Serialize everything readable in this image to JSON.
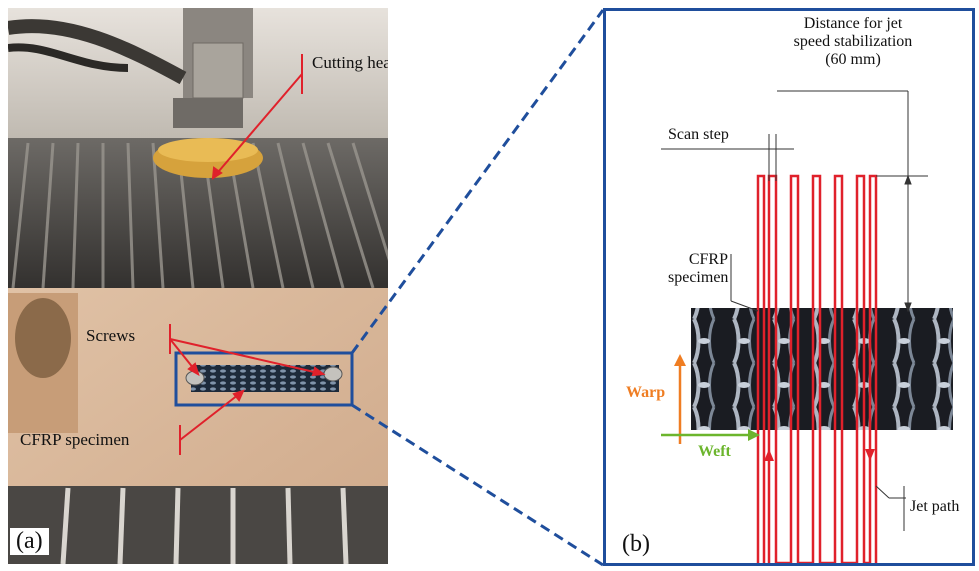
{
  "panel_a": {
    "tag": "(a)",
    "labels": {
      "cutting_head": "Cutting head",
      "screws": "Screws",
      "cfrp_specimen": "CFRP specimen"
    }
  },
  "panel_b": {
    "tag": "(b)",
    "labels": {
      "distance_line1": "Distance for jet",
      "distance_line2": "speed stabilization",
      "distance_line3": "(60 mm)",
      "scan_step": "Scan step",
      "cfrp_line1": "CFRP",
      "cfrp_line2": "specimen",
      "warp": "Warp",
      "weft": "Weft",
      "jet_path": "Jet path"
    }
  },
  "colors": {
    "border_blue": "#1f4e9c",
    "arrow_red": "#e0212b",
    "warp_orange": "#ef7d22",
    "weft_green": "#6cb52d"
  }
}
